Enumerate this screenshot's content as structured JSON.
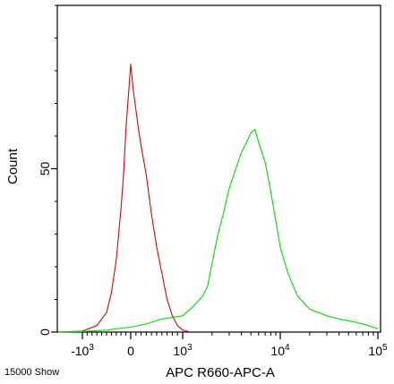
{
  "footer": {
    "note": "15000 Show"
  },
  "chart_data": {
    "type": "line",
    "xlabel": "APC R660-APC-A",
    "ylabel": "Count",
    "x_scale": "logicle",
    "xlim": [
      -2000,
      100000
    ],
    "ylim": [
      0,
      100
    ],
    "grid": false,
    "legend": "none",
    "x_major_ticks": [
      {
        "value": -1000,
        "label": "-10",
        "exp": "3"
      },
      {
        "value": 0,
        "label": "0",
        "exp": ""
      },
      {
        "value": 1000,
        "label": "10",
        "exp": "3"
      },
      {
        "value": 10000,
        "label": "10",
        "exp": "4"
      },
      {
        "value": 100000,
        "label": "10",
        "exp": "5"
      }
    ],
    "y_major_ticks": [
      {
        "value": 0,
        "label": "0"
      },
      {
        "value": 50,
        "label": "50"
      }
    ],
    "series": [
      {
        "color": "#e00000",
        "points": [
          [
            -1500,
            0
          ],
          [
            -1000,
            0.3
          ],
          [
            -700,
            2
          ],
          [
            -500,
            6
          ],
          [
            -400,
            12
          ],
          [
            -300,
            22
          ],
          [
            -200,
            38
          ],
          [
            -150,
            48
          ],
          [
            -100,
            62
          ],
          [
            -50,
            72
          ],
          [
            0,
            82
          ],
          [
            50,
            74
          ],
          [
            100,
            68
          ],
          [
            150,
            62
          ],
          [
            200,
            57
          ],
          [
            300,
            48
          ],
          [
            400,
            36
          ],
          [
            500,
            26
          ],
          [
            600,
            18
          ],
          [
            700,
            10
          ],
          [
            800,
            5
          ],
          [
            900,
            2
          ],
          [
            1000,
            0.6
          ],
          [
            1200,
            0
          ]
        ]
      },
      {
        "color": "#00dd00",
        "points": [
          [
            -1500,
            0
          ],
          [
            -1000,
            0.2
          ],
          [
            -500,
            0.6
          ],
          [
            0,
            1.5
          ],
          [
            300,
            2.5
          ],
          [
            600,
            4
          ],
          [
            1000,
            5
          ],
          [
            1300,
            8
          ],
          [
            1600,
            11
          ],
          [
            1800,
            14
          ],
          [
            2000,
            21
          ],
          [
            2300,
            30
          ],
          [
            2600,
            36
          ],
          [
            3000,
            44
          ],
          [
            3500,
            50
          ],
          [
            4000,
            55
          ],
          [
            4500,
            58
          ],
          [
            5000,
            61
          ],
          [
            5500,
            62
          ],
          [
            6000,
            58
          ],
          [
            7000,
            52
          ],
          [
            8000,
            43
          ],
          [
            9000,
            34
          ],
          [
            10000,
            26
          ],
          [
            12000,
            18
          ],
          [
            15000,
            11
          ],
          [
            20000,
            7
          ],
          [
            30000,
            5
          ],
          [
            40000,
            4
          ],
          [
            60000,
            3
          ],
          [
            80000,
            2
          ],
          [
            100000,
            1
          ]
        ]
      }
    ]
  }
}
